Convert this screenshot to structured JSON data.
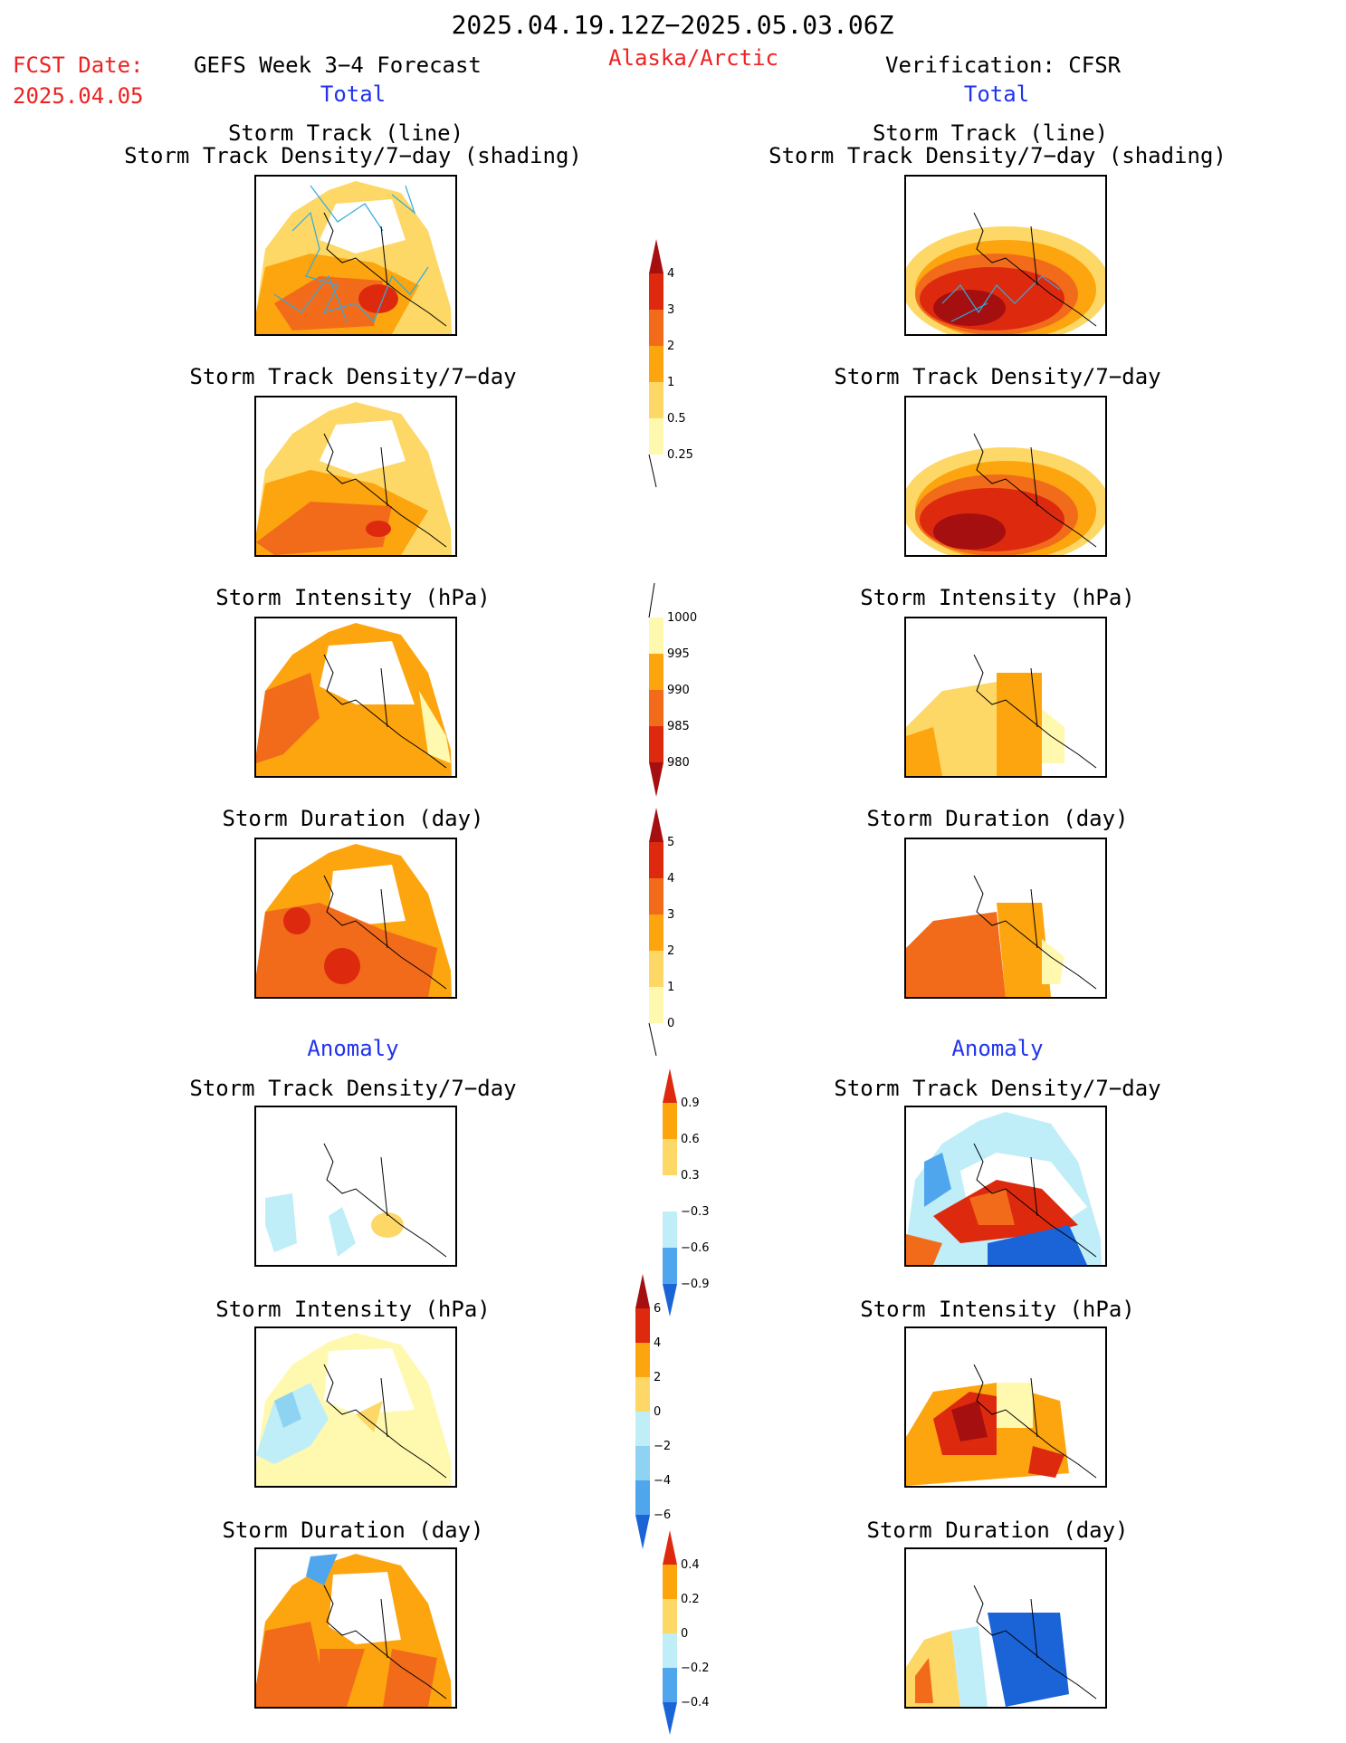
{
  "header": {
    "date_range": "2025.04.19.12Z−2025.05.03.06Z",
    "fcst_label": "FCST Date:",
    "fcst_date": "2025.04.05",
    "model": "GEFS Week 3−4 Forecast",
    "region": "Alaska/Arctic",
    "verification": "Verification: CFSR"
  },
  "sections": {
    "total": "Total",
    "anomaly": "Anomaly"
  },
  "panel_titles": {
    "track_line": "Storm Track (line)",
    "track_shading": "Storm Track Density/7−day (shading)",
    "density": "Storm Track Density/7−day",
    "intensity": "Storm Intensity (hPa)",
    "duration": "Storm Duration (day)"
  },
  "colorbars": {
    "density_total": [
      "0.25",
      "0.5",
      "1",
      "2",
      "3",
      "4"
    ],
    "intensity_total": [
      "1000",
      "995",
      "990",
      "985",
      "980"
    ],
    "duration_total": [
      "0",
      "1",
      "2",
      "3",
      "4",
      "5"
    ],
    "density_anom": [
      "0.9",
      "0.6",
      "0.3",
      "−0.3",
      "−0.6",
      "−0.9"
    ],
    "intensity_anom": [
      "6",
      "4",
      "2",
      "0",
      "−2",
      "−4",
      "−6"
    ],
    "duration_anom": [
      "0.4",
      "0.2",
      "0",
      "−0.2",
      "−0.4"
    ]
  },
  "colors": {
    "warm": [
      "#fff9b0",
      "#fdd867",
      "#fca50f",
      "#f26b1a",
      "#dd2a0f",
      "#a50f0f"
    ],
    "cool": [
      "#bfeef8",
      "#8fd3f3",
      "#4fa6ec",
      "#1a64d8"
    ],
    "header_red": "#ee2222",
    "header_blue": "#2233ee"
  }
}
